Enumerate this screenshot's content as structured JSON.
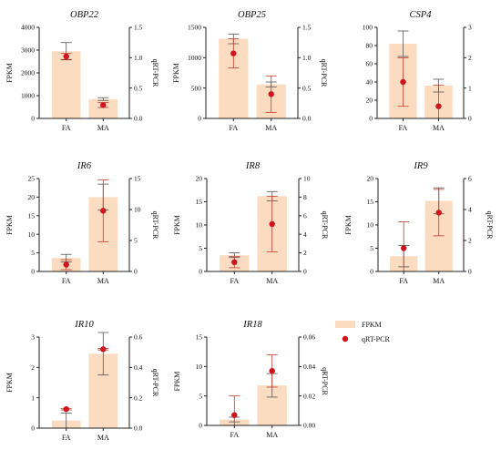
{
  "colors": {
    "bar": "#fcdcc0",
    "bar_error": "#555555",
    "point": "#d0141e",
    "point_error": "#c0392b",
    "axis": "#222222"
  },
  "legend": {
    "bar_label": "FPKM",
    "point_label": "qRT-PCR"
  },
  "chart_data": [
    {
      "type": "bar",
      "title": "OBP22",
      "categories": [
        "FA",
        "MA"
      ],
      "ylabel": "FPKM",
      "y2label": "qRT-PCR",
      "ylim": [
        0,
        4000
      ],
      "yticks": [
        0,
        1000,
        2000,
        3000,
        4000
      ],
      "y2lim": [
        0,
        1.5
      ],
      "y2ticks": [
        "0.0",
        "0.5",
        "1.0",
        "1.5"
      ],
      "fpkm": [
        2950,
        850
      ],
      "fpkm_err": [
        380,
        60
      ],
      "qpcr": [
        1.02,
        0.22
      ],
      "qpcr_err": [
        0.05,
        0.04
      ]
    },
    {
      "type": "bar",
      "title": "OBP25",
      "categories": [
        "FA",
        "MA"
      ],
      "ylabel": "FPKM",
      "y2label": "qRT-PCR",
      "ylim": [
        0,
        1500
      ],
      "yticks": [
        0,
        500,
        1000,
        1500
      ],
      "y2lim": [
        0,
        1.5
      ],
      "y2ticks": [
        "0.0",
        "0.5",
        "1.0",
        "1.5"
      ],
      "fpkm": [
        1310,
        560
      ],
      "fpkm_err": [
        80,
        40
      ],
      "qpcr": [
        1.07,
        0.4
      ],
      "qpcr_err": [
        0.24,
        0.3
      ]
    },
    {
      "type": "bar",
      "title": "CSP4",
      "categories": [
        "FA",
        "MA"
      ],
      "ylabel": "",
      "y2label": "",
      "ylim": [
        0,
        100
      ],
      "yticks": [
        0,
        20,
        40,
        60,
        80,
        100
      ],
      "y2lim": [
        0,
        3
      ],
      "y2ticks": [
        "0",
        "1",
        "2",
        "3"
      ],
      "fpkm": [
        82,
        36
      ],
      "fpkm_err": [
        14,
        7
      ],
      "qpcr": [
        1.2,
        0.4
      ],
      "qpcr_err": [
        0.8,
        0.7
      ]
    },
    {
      "type": "bar",
      "title": "IR6",
      "categories": [
        "FA",
        "MA"
      ],
      "ylabel": "FPKM",
      "y2label": "qRT-PCR",
      "ylim": [
        0,
        25
      ],
      "yticks": [
        0,
        5,
        10,
        15,
        20,
        25
      ],
      "y2lim": [
        0,
        15
      ],
      "y2ticks": [
        "0",
        "5",
        "10",
        "15"
      ],
      "fpkm": [
        3.6,
        20
      ],
      "fpkm_err": [
        1.0,
        3.5
      ],
      "qpcr": [
        1.1,
        9.8
      ],
      "qpcr_err": [
        0.8,
        5.0
      ]
    },
    {
      "type": "bar",
      "title": "IR8",
      "categories": [
        "FA",
        "MA"
      ],
      "ylabel": "FPKM",
      "y2label": "qRT-PCR",
      "ylim": [
        0,
        20
      ],
      "yticks": [
        0,
        5,
        10,
        15,
        20
      ],
      "y2lim": [
        0,
        10
      ],
      "y2ticks": [
        "0",
        "2",
        "4",
        "6",
        "8",
        "10"
      ],
      "fpkm": [
        3.5,
        16.2
      ],
      "fpkm_err": [
        0.5,
        1.0
      ],
      "qpcr": [
        1.0,
        5.1
      ],
      "qpcr_err": [
        0.6,
        3.0
      ]
    },
    {
      "type": "bar",
      "title": "IR9",
      "categories": [
        "FA",
        "MA"
      ],
      "ylabel": "FPKM",
      "y2label": "qRT-PCR",
      "ylim": [
        0,
        20
      ],
      "yticks": [
        0,
        5,
        10,
        15,
        20
      ],
      "y2lim": [
        0,
        6
      ],
      "y2ticks": [
        "0",
        "2",
        "4",
        "6"
      ],
      "fpkm": [
        3.3,
        15.2
      ],
      "fpkm_err": [
        2.3,
        2.8
      ],
      "qpcr": [
        1.5,
        3.8
      ],
      "qpcr_err": [
        1.7,
        1.5
      ]
    },
    {
      "type": "bar",
      "title": "IR10",
      "categories": [
        "FA",
        "MA"
      ],
      "ylabel": "FPKM",
      "y2label": "qRT-PCR",
      "ylim": [
        0,
        3
      ],
      "yticks": [
        0,
        1,
        2,
        3
      ],
      "y2lim": [
        0,
        0.6
      ],
      "y2ticks": [
        "0.0",
        "0.2",
        "0.4",
        "0.6"
      ],
      "fpkm": [
        0.25,
        2.45
      ],
      "fpkm_err": [
        0.25,
        0.7
      ],
      "qpcr": [
        0.125,
        0.52
      ],
      "qpcr_err": [
        0.005,
        0.005
      ]
    },
    {
      "type": "bar",
      "title": "IR18",
      "categories": [
        "FA",
        "MA"
      ],
      "ylabel": "FPKM",
      "y2label": "qRT-PCR",
      "ylim": [
        0,
        15
      ],
      "yticks": [
        0,
        5,
        10,
        15
      ],
      "y2lim": [
        0,
        0.06
      ],
      "y2ticks": [
        "0.00",
        "0.02",
        "0.04",
        "0.06"
      ],
      "fpkm": [
        1.0,
        6.8
      ],
      "fpkm_err": [
        0.4,
        2.0
      ],
      "qpcr": [
        0.007,
        0.037
      ],
      "qpcr_err": [
        0.013,
        0.011
      ]
    }
  ]
}
